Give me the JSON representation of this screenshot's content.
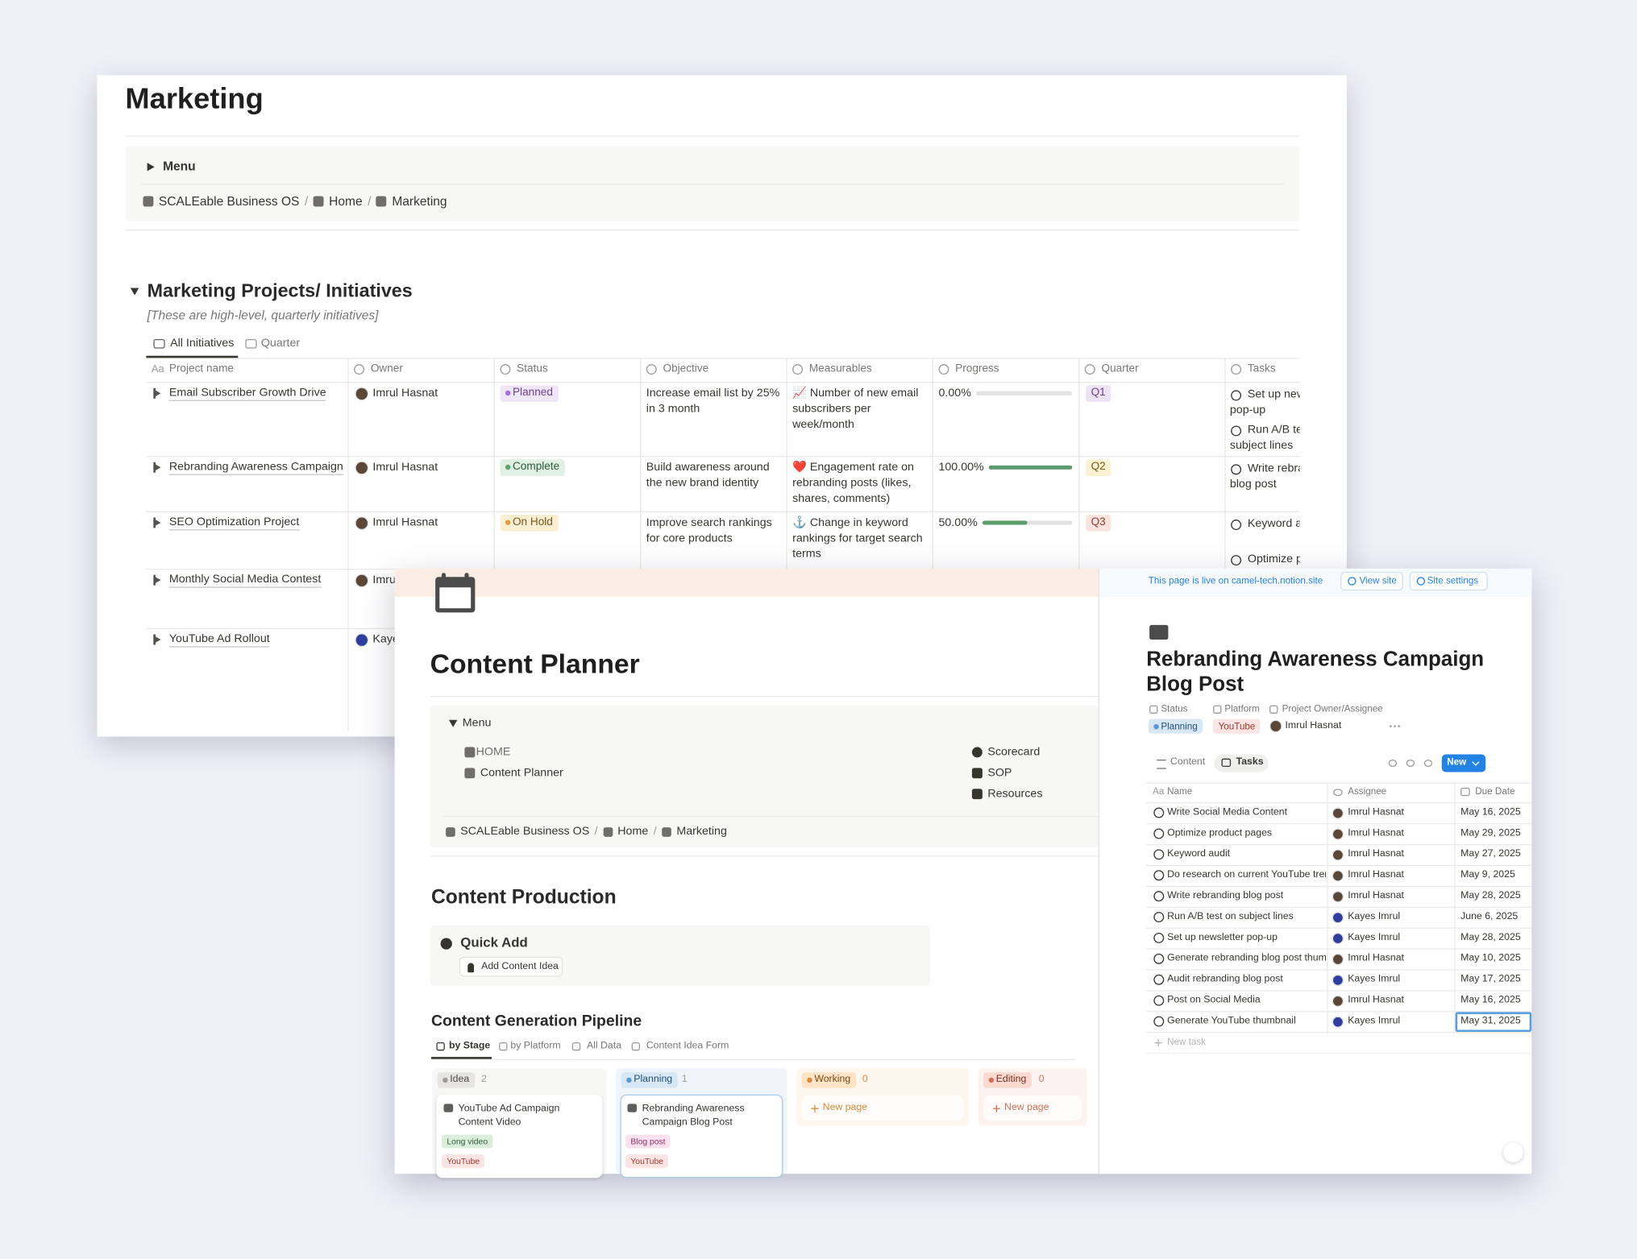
{
  "marketing": {
    "title": "Marketing",
    "menu": "Menu",
    "breadcrumb": [
      "SCALEable Business OS",
      "Home",
      "Marketing"
    ],
    "breadcrumb_separator": "/",
    "section": "Marketing Projects/ Initiatives",
    "note": "[These are high-level, quarterly initiatives]",
    "views": [
      "All Initiatives",
      "Quarter"
    ],
    "name_icon": "Aa",
    "columns": [
      "Project name",
      "Owner",
      "Status",
      "Objective",
      "Measurables",
      "Progress",
      "Quarter",
      "Tasks"
    ],
    "rows": [
      {
        "name": "Email Subscriber Growth Drive",
        "owner": "Imrul Hasnat",
        "status": "Planned",
        "objective": "Increase email list by 25% in 3 month",
        "measurables": "📈 Number of new email subscribers per week/month",
        "progress": {
          "value": 0,
          "label": "0.00%"
        },
        "quarter": "Q1",
        "tasks": [
          "Set up newsletter pop-up",
          "Run A/B test on subject lines"
        ]
      },
      {
        "name": "Rebranding Awareness Campaign",
        "owner": "Imrul Hasnat",
        "status": "Complete",
        "objective": "Build awareness around the new brand identity",
        "measurables": "❤️ Engagement rate on rebranding posts (likes, shares, comments)",
        "progress": {
          "value": 100,
          "label": "100.00%"
        },
        "quarter": "Q2",
        "tasks": [
          "Write rebranding blog post"
        ]
      },
      {
        "name": "SEO Optimization Project",
        "owner": "Imrul Hasnat",
        "status": "On Hold",
        "objective": "Improve search rankings for core products",
        "measurables": "⚓ Change in keyword rankings for target search terms",
        "progress": {
          "value": 50,
          "label": "50.00%"
        },
        "quarter": "Q3",
        "tasks": [
          "Keyword audit",
          "Optimize product pages"
        ]
      },
      {
        "name": "Monthly Social Media Contest",
        "owner": "Imrul Hasnat"
      },
      {
        "name": "YouTube Ad Rollout",
        "owner": "Kayes Imrul"
      }
    ]
  },
  "content_planner": {
    "title": "Content Planner",
    "menu": "Menu",
    "links_left": [
      "HOME",
      "Content Planner"
    ],
    "links_right": [
      "Scorecard",
      "SOP",
      "Resources"
    ],
    "breadcrumb": [
      "SCALEable Business OS",
      "Home",
      "Marketing"
    ],
    "breadcrumb_separator": "/",
    "section": "Content Production",
    "quick_add": "Quick Add",
    "quick_button": "Add Content Idea",
    "pipeline": "Content Generation Pipeline",
    "views": [
      "by Stage",
      "by Platform",
      "All Data",
      "Content Idea Form"
    ],
    "new_page": "New page",
    "board": [
      {
        "stage": "Idea",
        "count": 2,
        "cards": [
          {
            "title": "YouTube Ad Campaign Content Video",
            "tags": [
              "Long video",
              "YouTube"
            ]
          }
        ]
      },
      {
        "stage": "Planning",
        "count": 1,
        "cards": [
          {
            "title": "Rebranding Awareness Campaign Blog Post",
            "tags": [
              "Blog post",
              "YouTube"
            ]
          }
        ]
      },
      {
        "stage": "Working",
        "count": 0,
        "cards": []
      },
      {
        "stage": "Editing",
        "count": 0,
        "cards": []
      }
    ]
  },
  "task_page": {
    "banner": "This page is live on camel-tech.notion.site",
    "buttons": [
      "View site",
      "Site settings"
    ],
    "title": "Rebranding Awareness Campaign Blog Post",
    "properties": [
      {
        "label": "Status",
        "value": "Planning"
      },
      {
        "label": "Platform",
        "value": "YouTube"
      },
      {
        "label": "Project Owner/Assignee",
        "value": "Imrul Hasnat"
      }
    ],
    "views": [
      "Content",
      "Tasks"
    ],
    "new_button": "New",
    "name_icon": "Aa",
    "columns": [
      "Name",
      "Assignee",
      "Due Date"
    ],
    "tasks": [
      [
        "Write Social Media Content",
        "Imrul Hasnat",
        "May 16, 2025"
      ],
      [
        "Optimize product pages",
        "Imrul Hasnat",
        "May 29, 2025"
      ],
      [
        "Keyword audit",
        "Imrul Hasnat",
        "May 27, 2025"
      ],
      [
        "Do research on current YouTube trends",
        "Imrul Hasnat",
        "May 9, 2025"
      ],
      [
        "Write rebranding blog post",
        "Imrul Hasnat",
        "May 28, 2025"
      ],
      [
        "Run A/B test on subject lines",
        "Kayes Imrul",
        "June 6, 2025"
      ],
      [
        "Set up newsletter pop-up",
        "Kayes Imrul",
        "May 28, 2025"
      ],
      [
        "Generate rebranding blog post thumbnail",
        "Imrul Hasnat",
        "May 10, 2025"
      ],
      [
        "Audit rebranding blog post",
        "Kayes Imrul",
        "May 17, 2025"
      ],
      [
        "Post on Social Media",
        "Imrul Hasnat",
        "May 16, 2025"
      ],
      [
        "Generate YouTube thumbnail",
        "Kayes Imrul",
        "May 31, 2025"
      ]
    ],
    "new_task": "New task"
  }
}
